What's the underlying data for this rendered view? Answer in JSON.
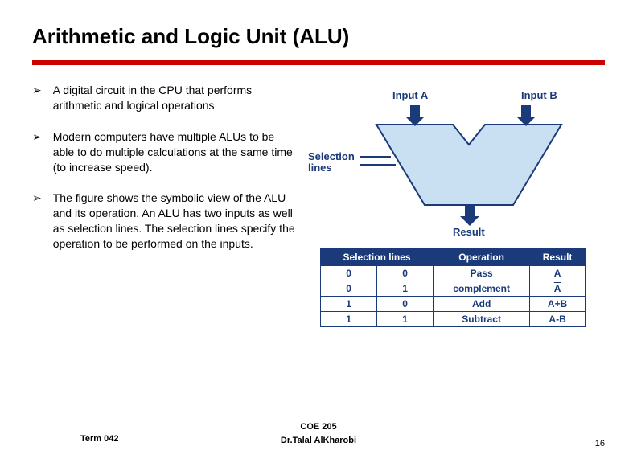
{
  "title": "Arithmetic and Logic Unit (ALU)",
  "bullets": [
    "A digital circuit in the CPU that performs arithmetic and logical operations",
    "Modern computers have multiple ALUs to be able to do multiple calculations at the same time (to increase speed).",
    "The figure shows the symbolic view of the ALU and its operation. An ALU has two inputs as well as selection lines. The selection lines specify the operation to be performed on the inputs."
  ],
  "diagram": {
    "labels": {
      "inputA": "Input A",
      "inputB": "Input B",
      "selection": "Selection lines",
      "result": "Result"
    },
    "colors": {
      "fill": "#c9dff2",
      "stroke": "#1a3a7a",
      "label": "#1a3a7a"
    }
  },
  "table": {
    "headers": [
      "Selection lines",
      "Operation",
      "Result"
    ],
    "rows": [
      {
        "sel": [
          "0",
          "0"
        ],
        "op": "Pass",
        "res": "A",
        "overline": false
      },
      {
        "sel": [
          "0",
          "1"
        ],
        "op": "complement",
        "res": "A",
        "overline": true
      },
      {
        "sel": [
          "1",
          "0"
        ],
        "op": "Add",
        "res": "A+B",
        "overline": false
      },
      {
        "sel": [
          "1",
          "1"
        ],
        "op": "Subtract",
        "res": "A-B",
        "overline": false
      }
    ],
    "header_bg": "#1a3a7a",
    "header_fg": "#ffffff",
    "cell_fg": "#1a3a7a"
  },
  "footer": {
    "course": "COE 205",
    "author": "Dr.Talal AlKharobi",
    "term": "Term 042",
    "page": "16"
  },
  "colors": {
    "redbar": "#cc0000",
    "text": "#000000",
    "bg": "#ffffff"
  }
}
